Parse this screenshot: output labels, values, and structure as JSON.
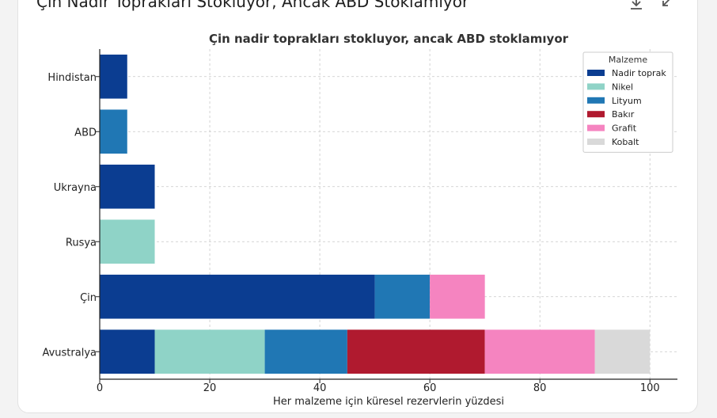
{
  "header": {
    "title": "Çin Nadir Toprakları Stokluyor, Ancak ABD Stoklamıyor"
  },
  "icons": {
    "download": "download-icon",
    "minimize": "minimize-icon"
  },
  "chart_data": {
    "type": "bar",
    "orientation": "horizontal",
    "stacked": true,
    "title": "Çin nadir toprakları stokluyor, ancak ABD stoklamıyor",
    "xlabel": "Her malzeme için küresel rezervlerin yüzdesi",
    "ylabel": "",
    "xlim": [
      0,
      105
    ],
    "xticks": [
      0,
      20,
      40,
      60,
      80,
      100
    ],
    "grid": true,
    "legend": {
      "title": "Malzeme",
      "position": "top-right"
    },
    "categories": [
      "Avustralya",
      "Çin",
      "Rusya",
      "Ukrayna",
      "ABD",
      "Hindistan"
    ],
    "series": [
      {
        "name": "Nadir toprak",
        "color": "#0b3d91",
        "values": [
          10,
          50,
          0,
          10,
          0,
          5
        ]
      },
      {
        "name": "Nikel",
        "color": "#8fd3c7",
        "values": [
          20,
          0,
          10,
          0,
          0,
          0
        ]
      },
      {
        "name": "Lityum",
        "color": "#2077b4",
        "values": [
          15,
          10,
          0,
          0,
          5,
          0
        ]
      },
      {
        "name": "Bakır",
        "color": "#b01a2f",
        "values": [
          25,
          0,
          0,
          0,
          0,
          0
        ]
      },
      {
        "name": "Grafit",
        "color": "#f584c0",
        "values": [
          20,
          10,
          0,
          0,
          0,
          0
        ]
      },
      {
        "name": "Kobalt",
        "color": "#d9d9d9",
        "values": [
          10,
          0,
          0,
          0,
          0,
          0
        ]
      }
    ]
  }
}
